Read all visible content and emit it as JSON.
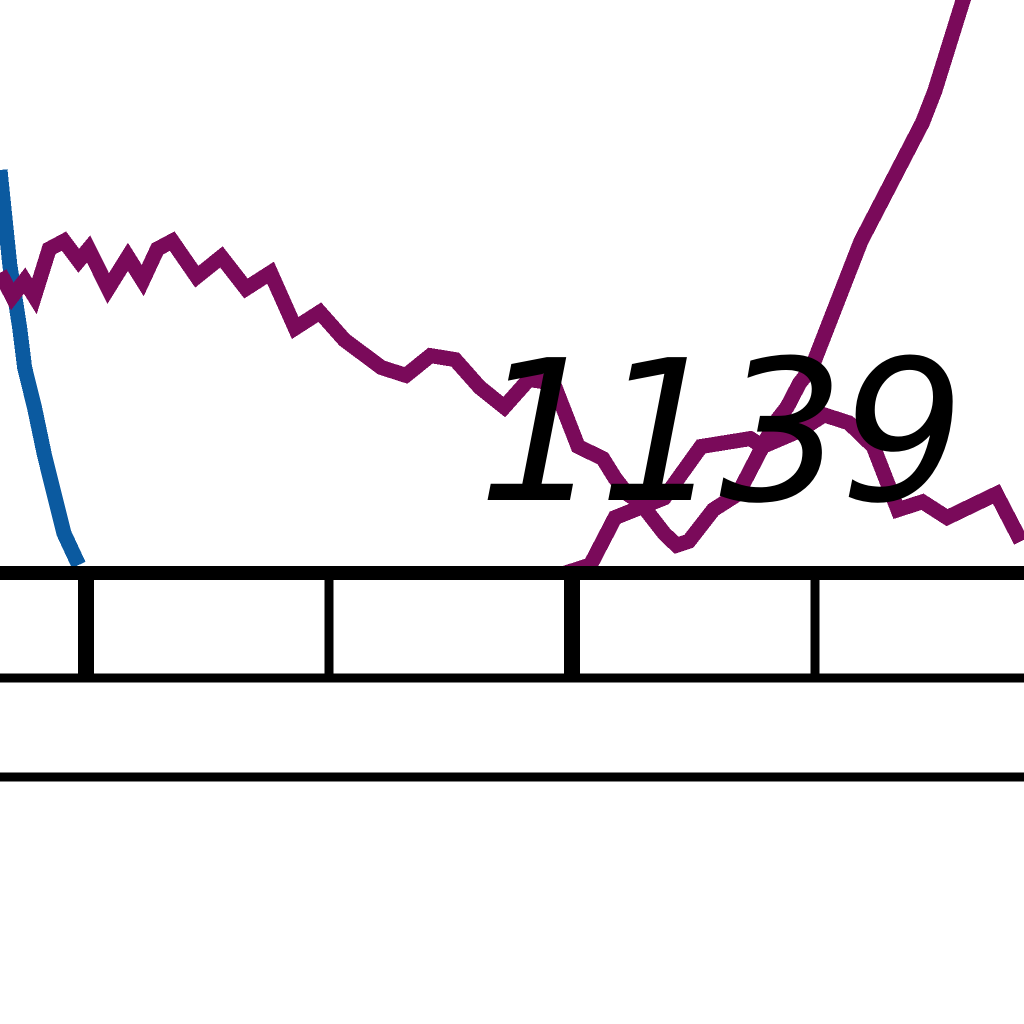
{
  "chart_data": {
    "type": "line",
    "title": "",
    "xlabel": "",
    "ylabel": "",
    "annotation": "1139",
    "grid": false,
    "legend": "none",
    "series": [
      {
        "color": "#0b5aa0",
        "points": [
          [
            0.0,
            1.0
          ],
          [
            0.2,
            0.88
          ],
          [
            0.4,
            0.76
          ],
          [
            0.6,
            0.68
          ],
          [
            0.8,
            0.6
          ],
          [
            1.0,
            0.5
          ],
          [
            1.4,
            0.4
          ],
          [
            1.8,
            0.28
          ],
          [
            2.2,
            0.18
          ],
          [
            2.6,
            0.08
          ],
          [
            3.2,
            0.0
          ]
        ]
      },
      {
        "color": "#7a0a5a",
        "points": [
          [
            0.0,
            0.74
          ],
          [
            0.5,
            0.68
          ],
          [
            1.0,
            0.72
          ],
          [
            1.4,
            0.68
          ],
          [
            2.0,
            0.8
          ],
          [
            2.6,
            0.82
          ],
          [
            3.2,
            0.77
          ],
          [
            3.6,
            0.8
          ],
          [
            4.4,
            0.7
          ],
          [
            5.2,
            0.78
          ],
          [
            5.8,
            0.72
          ],
          [
            6.4,
            0.8
          ],
          [
            7.0,
            0.82
          ],
          [
            8.0,
            0.73
          ],
          [
            9.0,
            0.78
          ],
          [
            10.0,
            0.7
          ],
          [
            11.0,
            0.74
          ],
          [
            12.0,
            0.6
          ],
          [
            13.0,
            0.64
          ],
          [
            14.0,
            0.57
          ],
          [
            15.5,
            0.5
          ],
          [
            16.5,
            0.48
          ],
          [
            17.5,
            0.53
          ],
          [
            18.5,
            0.52
          ],
          [
            19.5,
            0.45
          ],
          [
            20.5,
            0.4
          ],
          [
            21.5,
            0.47
          ],
          [
            22.5,
            0.46
          ],
          [
            23.5,
            0.3
          ],
          [
            24.5,
            0.27
          ],
          [
            25.0,
            0.22
          ],
          [
            25.5,
            0.18
          ],
          [
            26.0,
            0.16
          ],
          [
            26.5,
            0.12
          ],
          [
            27.0,
            0.08
          ],
          [
            27.5,
            0.05
          ],
          [
            28.0,
            0.06
          ],
          [
            28.5,
            0.1
          ],
          [
            29.0,
            0.14
          ],
          [
            30.0,
            0.18
          ],
          [
            30.5,
            0.24
          ],
          [
            31.0,
            0.3
          ],
          [
            31.5,
            0.36
          ],
          [
            32.0,
            0.4
          ],
          [
            32.5,
            0.46
          ],
          [
            33.0,
            0.5
          ],
          [
            33.5,
            0.58
          ],
          [
            34.0,
            0.66
          ],
          [
            34.5,
            0.74
          ],
          [
            35.0,
            0.82
          ],
          [
            35.5,
            0.88
          ],
          [
            36.0,
            0.94
          ],
          [
            36.5,
            1.0
          ],
          [
            37.0,
            1.06
          ],
          [
            37.5,
            1.12
          ],
          [
            38.0,
            1.2
          ],
          [
            38.5,
            1.3
          ],
          [
            39.0,
            1.4
          ],
          [
            39.5,
            1.5
          ],
          [
            40.0,
            1.6
          ],
          [
            40.5,
            1.72
          ],
          [
            41.0,
            1.84
          ],
          [
            41.5,
            1.96
          ]
        ]
      },
      {
        "color": "#7a0a5a",
        "points": [
          [
            23.0,
            -0.02
          ],
          [
            24.0,
            0.0
          ],
          [
            25.0,
            0.12
          ],
          [
            27.0,
            0.17
          ],
          [
            28.5,
            0.3
          ],
          [
            30.5,
            0.32
          ],
          [
            31.0,
            0.3
          ],
          [
            32.5,
            0.34
          ],
          [
            33.5,
            0.38
          ],
          [
            34.5,
            0.36
          ],
          [
            35.5,
            0.3
          ],
          [
            36.5,
            0.14
          ],
          [
            37.5,
            0.16
          ],
          [
            38.5,
            0.12
          ],
          [
            40.5,
            0.18
          ],
          [
            41.5,
            0.06
          ]
        ]
      }
    ]
  }
}
